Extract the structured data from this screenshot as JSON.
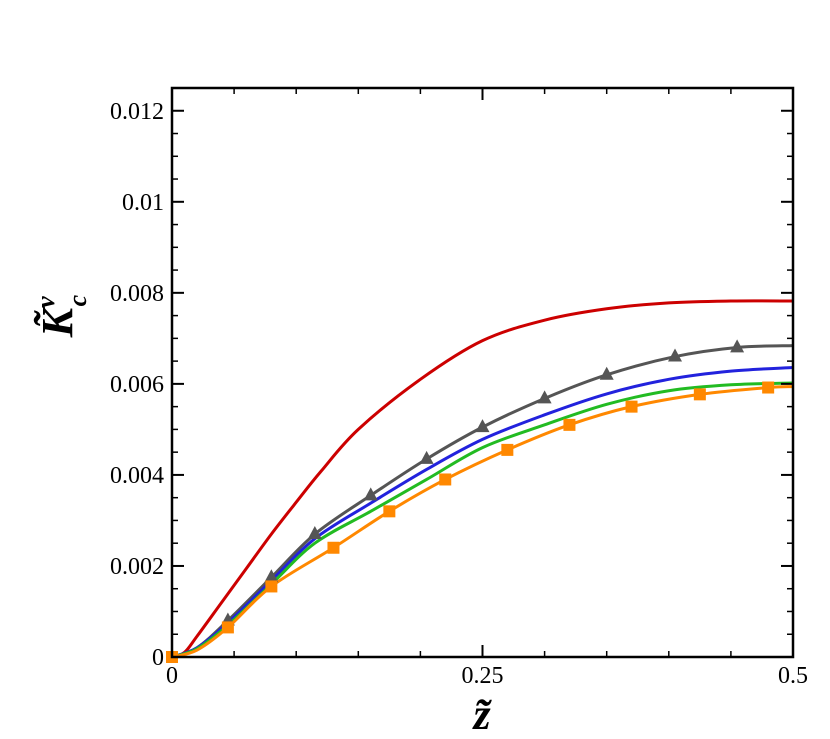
{
  "chart_data": {
    "type": "line",
    "xlabel": "z̃",
    "ylabel": {
      "main": "K̃",
      "sub": "c",
      "sup": "v"
    },
    "xlim": [
      0,
      0.5
    ],
    "ylim": [
      0,
      0.0125
    ],
    "x_ticks": [
      {
        "value": 0,
        "label": "0"
      },
      {
        "value": 0.25,
        "label": "0.25"
      },
      {
        "value": 0.5,
        "label": "0.5"
      }
    ],
    "y_ticks": [
      {
        "value": 0,
        "label": "0"
      },
      {
        "value": 0.002,
        "label": "0.002"
      },
      {
        "value": 0.004,
        "label": "0.004"
      },
      {
        "value": 0.006,
        "label": "0.006"
      },
      {
        "value": 0.008,
        "label": "0.008"
      },
      {
        "value": 0.01,
        "label": "0.01"
      },
      {
        "value": 0.012,
        "label": "0.012"
      }
    ],
    "x_minor_step": 0.05,
    "y_minor_step": 0.0005,
    "grid": false,
    "series": [
      {
        "color": "#cc0000",
        "marker": "none",
        "points": [
          [
            0,
            0
          ],
          [
            0.01,
            0.0001
          ],
          [
            0.02,
            0.00045
          ],
          [
            0.04,
            0.0012
          ],
          [
            0.06,
            0.00195
          ],
          [
            0.08,
            0.0027
          ],
          [
            0.1,
            0.0034
          ],
          [
            0.12,
            0.00408
          ],
          [
            0.15,
            0.005
          ],
          [
            0.2,
            0.0061
          ],
          [
            0.25,
            0.00695
          ],
          [
            0.3,
            0.0074
          ],
          [
            0.35,
            0.00765
          ],
          [
            0.4,
            0.00778
          ],
          [
            0.45,
            0.00782
          ],
          [
            0.5,
            0.00782
          ]
        ]
      },
      {
        "color": "#555555",
        "marker": "triangle",
        "points": [
          [
            0,
            0
          ],
          [
            0.02,
            0.0002
          ],
          [
            0.045,
            0.0008
          ],
          [
            0.08,
            0.00175
          ],
          [
            0.115,
            0.0027
          ],
          [
            0.16,
            0.00355
          ],
          [
            0.205,
            0.00435
          ],
          [
            0.25,
            0.00505
          ],
          [
            0.3,
            0.00568
          ],
          [
            0.35,
            0.0062
          ],
          [
            0.405,
            0.0066
          ],
          [
            0.455,
            0.0068
          ],
          [
            0.5,
            0.00684
          ]
        ],
        "marker_x": [
          0.045,
          0.08,
          0.115,
          0.16,
          0.205,
          0.25,
          0.3,
          0.35,
          0.405,
          0.455
        ]
      },
      {
        "color": "#2222dd",
        "marker": "none",
        "points": [
          [
            0,
            0
          ],
          [
            0.02,
            0.0002
          ],
          [
            0.045,
            0.00075
          ],
          [
            0.08,
            0.00168
          ],
          [
            0.115,
            0.0026
          ],
          [
            0.16,
            0.00338
          ],
          [
            0.205,
            0.00412
          ],
          [
            0.25,
            0.00478
          ],
          [
            0.3,
            0.00532
          ],
          [
            0.35,
            0.00578
          ],
          [
            0.4,
            0.0061
          ],
          [
            0.45,
            0.00628
          ],
          [
            0.5,
            0.00636
          ]
        ]
      },
      {
        "color": "#22bb22",
        "marker": "none",
        "points": [
          [
            0,
            0
          ],
          [
            0.02,
            0.00018
          ],
          [
            0.045,
            0.0007
          ],
          [
            0.08,
            0.0016
          ],
          [
            0.115,
            0.0025
          ],
          [
            0.16,
            0.0032
          ],
          [
            0.205,
            0.0039
          ],
          [
            0.25,
            0.0046
          ],
          [
            0.3,
            0.0051
          ],
          [
            0.35,
            0.00555
          ],
          [
            0.4,
            0.00585
          ],
          [
            0.45,
            0.00598
          ],
          [
            0.5,
            0.00602
          ]
        ]
      },
      {
        "color": "#ff8800",
        "marker": "square",
        "points": [
          [
            0,
            0
          ],
          [
            0.02,
            0.00015
          ],
          [
            0.045,
            0.00065
          ],
          [
            0.08,
            0.00155
          ],
          [
            0.13,
            0.0024
          ],
          [
            0.175,
            0.0032
          ],
          [
            0.22,
            0.0039
          ],
          [
            0.27,
            0.00455
          ],
          [
            0.32,
            0.0051
          ],
          [
            0.37,
            0.0055
          ],
          [
            0.425,
            0.00577
          ],
          [
            0.48,
            0.00592
          ],
          [
            0.5,
            0.00594
          ]
        ],
        "marker_x": [
          0,
          0.045,
          0.08,
          0.13,
          0.175,
          0.22,
          0.27,
          0.32,
          0.37,
          0.425,
          0.48
        ]
      }
    ]
  }
}
